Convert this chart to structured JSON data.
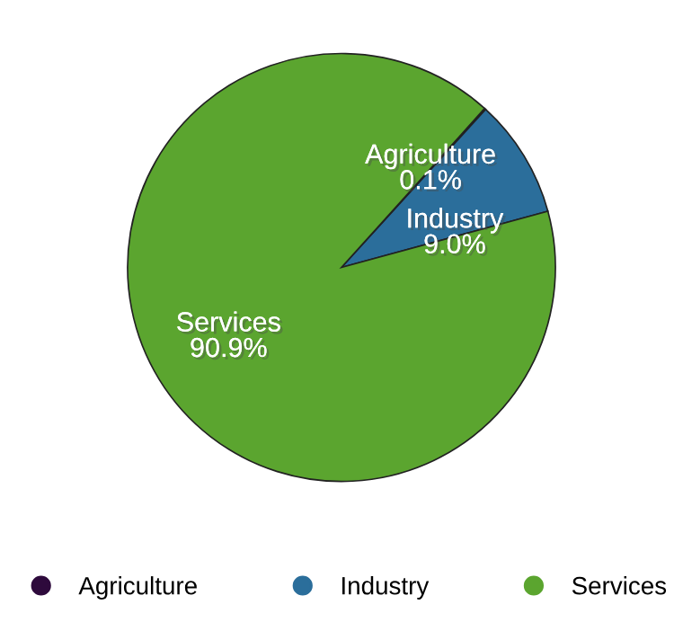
{
  "chart_data": {
    "type": "pie",
    "categories": [
      "Agriculture",
      "Industry",
      "Services"
    ],
    "values": [
      0.1,
      9.0,
      90.9
    ],
    "value_labels": [
      "0.1%",
      "9.0%",
      "90.9%"
    ],
    "colors": [
      "#2e0a3c",
      "#2b6e9b",
      "#5ba52f"
    ],
    "legend": "bottom"
  }
}
